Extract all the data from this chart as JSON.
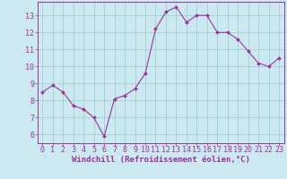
{
  "x": [
    0,
    1,
    2,
    3,
    4,
    5,
    6,
    7,
    8,
    9,
    10,
    11,
    12,
    13,
    14,
    15,
    16,
    17,
    18,
    19,
    20,
    21,
    22,
    23
  ],
  "y": [
    8.5,
    8.9,
    8.5,
    7.7,
    7.5,
    7.0,
    5.9,
    8.1,
    8.3,
    8.7,
    9.6,
    12.2,
    13.2,
    13.5,
    12.6,
    13.0,
    13.0,
    12.0,
    12.0,
    11.6,
    10.9,
    10.2,
    10.0,
    10.5
  ],
  "line_color": "#993399",
  "marker": "D",
  "marker_size": 2.0,
  "bg_color": "#cce8f0",
  "grid_color": "#99cccc",
  "xlabel": "Windchill (Refroidissement éolien,°C)",
  "ylim": [
    5.5,
    13.8
  ],
  "xlim": [
    -0.5,
    23.5
  ],
  "yticks": [
    6,
    7,
    8,
    9,
    10,
    11,
    12,
    13
  ],
  "xticks": [
    0,
    1,
    2,
    3,
    4,
    5,
    6,
    7,
    8,
    9,
    10,
    11,
    12,
    13,
    14,
    15,
    16,
    17,
    18,
    19,
    20,
    21,
    22,
    23
  ],
  "tick_color": "#993399",
  "label_fontsize": 6.5,
  "tick_fontsize": 6.0
}
